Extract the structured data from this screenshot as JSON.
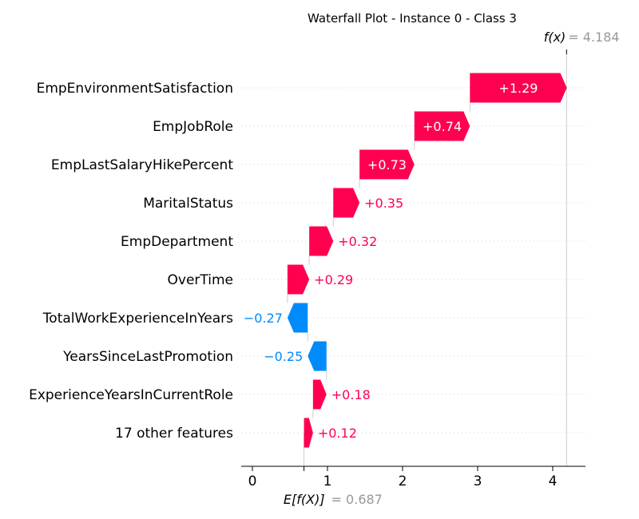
{
  "chart_data": {
    "type": "waterfall",
    "title": "Waterfall Plot - Instance 0 - Class 3",
    "base_value_label": "E[f(X)]",
    "base_value_text": "= 0.687",
    "base_value": 0.687,
    "output_label": "f(x)",
    "output_value_text": "= 4.184",
    "output_value": 4.184,
    "features": [
      {
        "name": "EmpEnvironmentSatisfaction",
        "value": 1.29,
        "label": "+1.29"
      },
      {
        "name": "EmpJobRole",
        "value": 0.74,
        "label": "+0.74"
      },
      {
        "name": "EmpLastSalaryHikePercent",
        "value": 0.73,
        "label": "+0.73"
      },
      {
        "name": "MaritalStatus",
        "value": 0.35,
        "label": "+0.35"
      },
      {
        "name": "EmpDepartment",
        "value": 0.32,
        "label": "+0.32"
      },
      {
        "name": "OverTime",
        "value": 0.29,
        "label": "+0.29"
      },
      {
        "name": "TotalWorkExperienceInYears",
        "value": -0.27,
        "label": "−0.27"
      },
      {
        "name": "YearsSinceLastPromotion",
        "value": -0.25,
        "label": "−0.25"
      },
      {
        "name": "ExperienceYearsInCurrentRole",
        "value": 0.18,
        "label": "+0.18"
      },
      {
        "name": "17 other features",
        "value": 0.12,
        "label": "+0.12"
      }
    ],
    "x_ticks": [
      0,
      1,
      2,
      3,
      4
    ],
    "x_tick_labels": [
      "0",
      "1",
      "2",
      "3",
      "4"
    ],
    "xlim": [
      -0.15,
      4.45
    ],
    "colors": {
      "positive": "#ff0051",
      "negative": "#008bfb",
      "guide": "#cccccc"
    }
  }
}
